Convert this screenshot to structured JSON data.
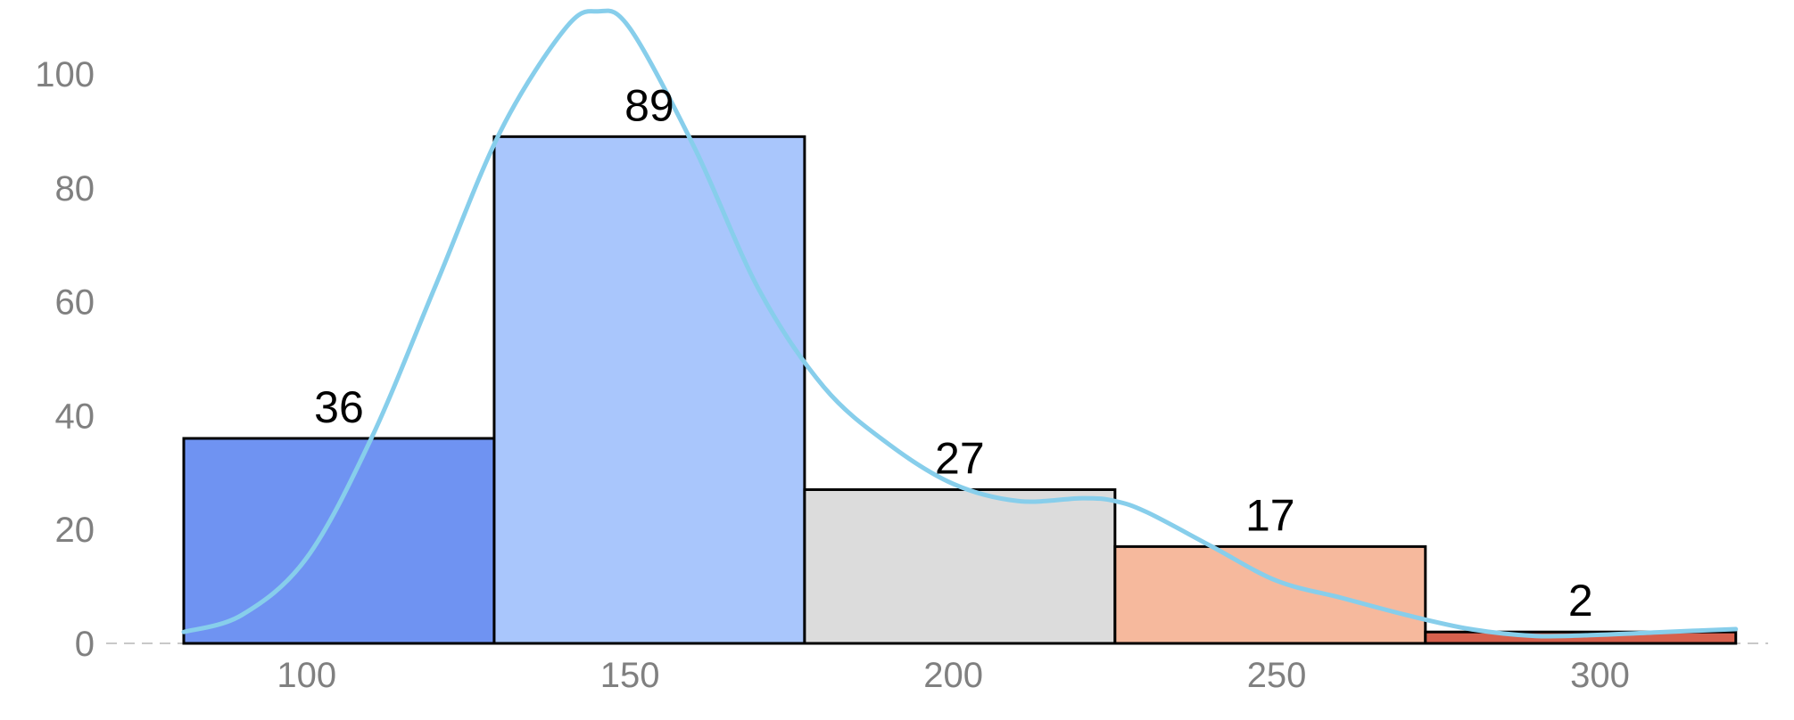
{
  "chart_data": {
    "type": "histogram",
    "title": "",
    "xlabel": "",
    "ylabel": "",
    "xlim": [
      69,
      326
    ],
    "ylim": [
      0,
      113
    ],
    "x_ticks": [
      100,
      150,
      200,
      250,
      300
    ],
    "y_ticks": [
      0,
      20,
      40,
      60,
      80,
      100
    ],
    "grid": false,
    "bins": [
      {
        "start": 81,
        "end": 129,
        "count": 36,
        "label": "36",
        "color": "#6f93f2"
      },
      {
        "start": 129,
        "end": 177,
        "count": 89,
        "label": "89",
        "color": "#a9c6fc"
      },
      {
        "start": 177,
        "end": 225,
        "count": 27,
        "label": "27",
        "color": "#dcdcdc"
      },
      {
        "start": 225,
        "end": 273,
        "count": 17,
        "label": "17",
        "color": "#f6b99d"
      },
      {
        "start": 273,
        "end": 321,
        "count": 2,
        "label": "2",
        "color": "#d6604d"
      }
    ],
    "kde": {
      "color": "#87ceeb",
      "x": [
        81,
        90,
        100,
        110,
        120,
        130,
        140,
        145,
        150,
        160,
        170,
        180,
        190,
        200,
        210,
        220,
        225,
        230,
        240,
        250,
        260,
        270,
        280,
        290,
        300,
        310,
        321
      ],
      "y": [
        2,
        5,
        15,
        36,
        63,
        90,
        108,
        111,
        108,
        87,
        62,
        45,
        35,
        28,
        25,
        25.5,
        25,
        23,
        17,
        11,
        8,
        5,
        2.5,
        1.3,
        1.5,
        2,
        2.5
      ]
    },
    "baseline_style": "dashed"
  }
}
